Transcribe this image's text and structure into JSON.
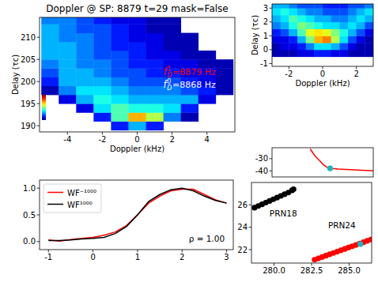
{
  "chart_data": [
    {
      "type": "heatmap",
      "title": "Doppler @ SP: 8879 t=29 mask=False",
      "x_label": "Doppler (kHz)",
      "y_label": "Delay (τc)",
      "x": [
        -5,
        -4,
        -3,
        -2,
        -1,
        0,
        1,
        2,
        3,
        4,
        5
      ],
      "y": [
        190,
        192,
        194,
        196,
        198,
        200,
        202,
        204,
        206,
        208,
        210,
        212,
        214
      ],
      "cells": [
        [
          null,
          null,
          null,
          null,
          0.15,
          0.3,
          0.15,
          null,
          null,
          null,
          null
        ],
        [
          null,
          null,
          null,
          0.15,
          0.45,
          0.7,
          0.55,
          0.25,
          0.05,
          null,
          null
        ],
        [
          null,
          null,
          0.1,
          0.35,
          0.45,
          0.4,
          0.4,
          0.35,
          0.15,
          null,
          null
        ],
        [
          null,
          0.1,
          0.3,
          0.4,
          0.35,
          0.3,
          0.3,
          0.3,
          0.3,
          0.1,
          null
        ],
        [
          0.05,
          0.25,
          0.35,
          0.35,
          0.3,
          0.25,
          0.25,
          0.25,
          0.2,
          0.15,
          0.05
        ],
        [
          0.15,
          0.3,
          0.3,
          0.3,
          0.25,
          0.2,
          0.2,
          0.2,
          0.15,
          0.1,
          0.05
        ],
        [
          0.2,
          0.3,
          0.3,
          0.25,
          0.2,
          0.2,
          0.15,
          0.15,
          0.1,
          0.1,
          0.05
        ],
        [
          0.25,
          0.3,
          0.25,
          0.25,
          0.2,
          0.15,
          0.15,
          0.1,
          0.1,
          0.05,
          0.05
        ],
        [
          0.3,
          0.3,
          0.25,
          0.2,
          0.2,
          0.15,
          0.1,
          0.1,
          0.05,
          0.05,
          null
        ],
        [
          0.3,
          0.3,
          0.25,
          0.2,
          0.15,
          0.15,
          0.1,
          0.05,
          0.05,
          null,
          null
        ],
        [
          0.3,
          0.25,
          0.25,
          0.2,
          0.15,
          0.1,
          0.1,
          0.05,
          0.05,
          null,
          null
        ],
        [
          0.3,
          0.25,
          0.2,
          0.2,
          0.15,
          0.1,
          0.05,
          0.05,
          null,
          null,
          null
        ],
        [
          0.25,
          0.25,
          0.2,
          0.15,
          0.1,
          0.1,
          0.05,
          0.05,
          null,
          null,
          null
        ]
      ],
      "colorbar_range": [
        0,
        1
      ],
      "xlim": [
        -5.6,
        5.6
      ],
      "ylim": [
        188.6,
        214.5
      ],
      "xticks": [
        -4,
        -2,
        0,
        2,
        4
      ],
      "yticks": [
        190,
        195,
        200,
        205,
        210
      ],
      "annotations": [
        {
          "text": "f",
          "sub": "D",
          "sup": "1",
          "suffix": "=8879 Hz",
          "color": "red",
          "x": 1.5,
          "y": 201.5
        },
        {
          "text": "f",
          "sub": "D",
          "sup": "0",
          "suffix": "=8868 Hz",
          "color": "white",
          "x": 1.5,
          "y": 198.6
        }
      ]
    },
    {
      "type": "heatmap",
      "x_label": "Doppler (kHz)",
      "y_label": "Delay (τc)",
      "x": [
        -2.75,
        -2.25,
        -1.75,
        -1.25,
        -0.75,
        -0.25,
        0.25,
        0.75,
        1.25,
        1.75,
        2.25,
        2.75
      ],
      "y": [
        -0.25,
        0.25,
        0.75,
        1.25,
        1.75,
        2.25,
        2.75,
        3.25
      ],
      "cells": [
        [
          0.05,
          0.05,
          0.05,
          0.1,
          0.1,
          0.15,
          0.15,
          0.1,
          0.1,
          0.05,
          0.05,
          0.05
        ],
        [
          0.05,
          0.1,
          0.1,
          0.15,
          0.25,
          0.35,
          0.35,
          0.3,
          0.2,
          0.1,
          0.05,
          0.05
        ],
        [
          0.1,
          0.1,
          0.15,
          0.3,
          0.5,
          0.7,
          0.75,
          0.55,
          0.35,
          0.2,
          0.1,
          0.05
        ],
        [
          0.15,
          0.2,
          0.3,
          0.45,
          0.6,
          0.65,
          0.6,
          0.5,
          0.4,
          0.3,
          0.2,
          0.1
        ],
        [
          0.25,
          0.3,
          0.4,
          0.5,
          0.45,
          0.4,
          0.35,
          0.35,
          0.3,
          0.35,
          0.3,
          0.2
        ],
        [
          0.3,
          0.35,
          0.45,
          0.4,
          0.35,
          0.3,
          0.3,
          0.25,
          0.25,
          0.3,
          0.35,
          0.3
        ],
        [
          0.35,
          0.4,
          0.35,
          0.3,
          0.25,
          0.25,
          0.2,
          0.2,
          0.2,
          0.25,
          0.3,
          0.35
        ],
        [
          0.3,
          0.3,
          0.25,
          0.2,
          0.2,
          0.2,
          0.15,
          0.15,
          0.15,
          0.2,
          0.2,
          0.25
        ]
      ],
      "color_range": [
        0,
        1
      ],
      "xlim": [
        -3,
        3
      ],
      "ylim": [
        -1.2,
        3.3
      ],
      "xticks": [
        -2,
        0,
        2
      ],
      "yticks": [
        -1,
        0,
        1,
        2,
        3
      ]
    },
    {
      "type": "line",
      "xlim": [
        280.3,
        286.4
      ],
      "ylim": [
        -45,
        -21
      ],
      "yticks": [
        -40,
        -30
      ],
      "tick_labels": "y",
      "series": [
        {
          "color": "red",
          "x": [
            282.6,
            282.9,
            283.2,
            283.4,
            283.6,
            283.9,
            284.3,
            285.0,
            285.7,
            286.4
          ],
          "values": [
            -22,
            -28,
            -32,
            -35,
            -37,
            -38,
            -38.5,
            -39,
            -39.5,
            -40
          ]
        },
        {
          "type": "scatter",
          "color": "#20b2c0",
          "x": [
            283.8
          ],
          "values": [
            -38
          ]
        }
      ]
    },
    {
      "type": "line",
      "xlim": [
        -1.2,
        3.15
      ],
      "ylim": [
        -0.15,
        1.15
      ],
      "xticks": [
        -1,
        0,
        1,
        2,
        3
      ],
      "yticks": [
        {
          "value": 0,
          "label": "0.0"
        },
        {
          "value": 0.5,
          "label": "0.5"
        },
        {
          "value": 1,
          "label": "1.0"
        }
      ],
      "legend": "upper left",
      "x": [
        -1,
        -0.75,
        -0.5,
        -0.25,
        0,
        0.25,
        0.5,
        0.75,
        1,
        1.25,
        1.5,
        1.75,
        2,
        2.25,
        2.5,
        2.75,
        3
      ],
      "series": [
        {
          "name": "WF⁻¹⁰⁰⁰",
          "color": "red",
          "values": [
            0.03,
            0.01,
            0.04,
            0.06,
            0.08,
            0.12,
            0.18,
            0.3,
            0.5,
            0.72,
            0.85,
            0.95,
            0.98,
            0.98,
            0.88,
            0.78,
            0.72
          ]
        },
        {
          "name": "WF¹⁰⁰⁰",
          "color": "black",
          "values": [
            0.02,
            0.02,
            0.03,
            0.05,
            0.06,
            0.08,
            0.15,
            0.28,
            0.5,
            0.75,
            0.88,
            0.97,
            1.0,
            0.95,
            0.85,
            0.77,
            0.72
          ]
        }
      ],
      "annotations": [
        {
          "text": "ρ = 1.00",
          "x": 2.15,
          "y": 0.0
        }
      ]
    },
    {
      "type": "scatter",
      "xlim": [
        278.5,
        286.5
      ],
      "ylim": [
        20.8,
        28
      ],
      "xticks": [
        {
          "value": 280,
          "label": "280.0"
        },
        {
          "value": 282.5,
          "label": "282.5"
        },
        {
          "value": 285,
          "label": "285.0"
        }
      ],
      "yticks": [
        22,
        24,
        26
      ],
      "series": [
        {
          "color": "black",
          "x": [
            278.7,
            278.95,
            279.2,
            279.45,
            279.7,
            279.95,
            280.2,
            280.45,
            280.7,
            280.95,
            281.2,
            281.3
          ],
          "values": [
            25.75,
            25.9,
            26.05,
            26.2,
            26.35,
            26.5,
            26.65,
            26.8,
            26.95,
            27.1,
            27.3,
            27.4
          ]
        },
        {
          "color": "red",
          "x": [
            282.7,
            282.95,
            283.2,
            283.45,
            283.7,
            283.95,
            284.2,
            284.45,
            284.7,
            284.95,
            285.2,
            285.45,
            285.7,
            285.95,
            286.2,
            286.45
          ],
          "values": [
            21.1,
            21.22,
            21.34,
            21.46,
            21.58,
            21.7,
            21.82,
            21.94,
            22.06,
            22.18,
            22.3,
            22.42,
            22.54,
            22.66,
            22.78,
            22.9
          ]
        },
        {
          "color": "#20b2c0",
          "x": [
            285.75
          ],
          "values": [
            22.5
          ]
        }
      ],
      "annotations": [
        {
          "text": "PRN18",
          "x": 279.7,
          "y": 25.0
        },
        {
          "text": "PRN24",
          "x": 283.6,
          "y": 23.9
        }
      ]
    }
  ]
}
